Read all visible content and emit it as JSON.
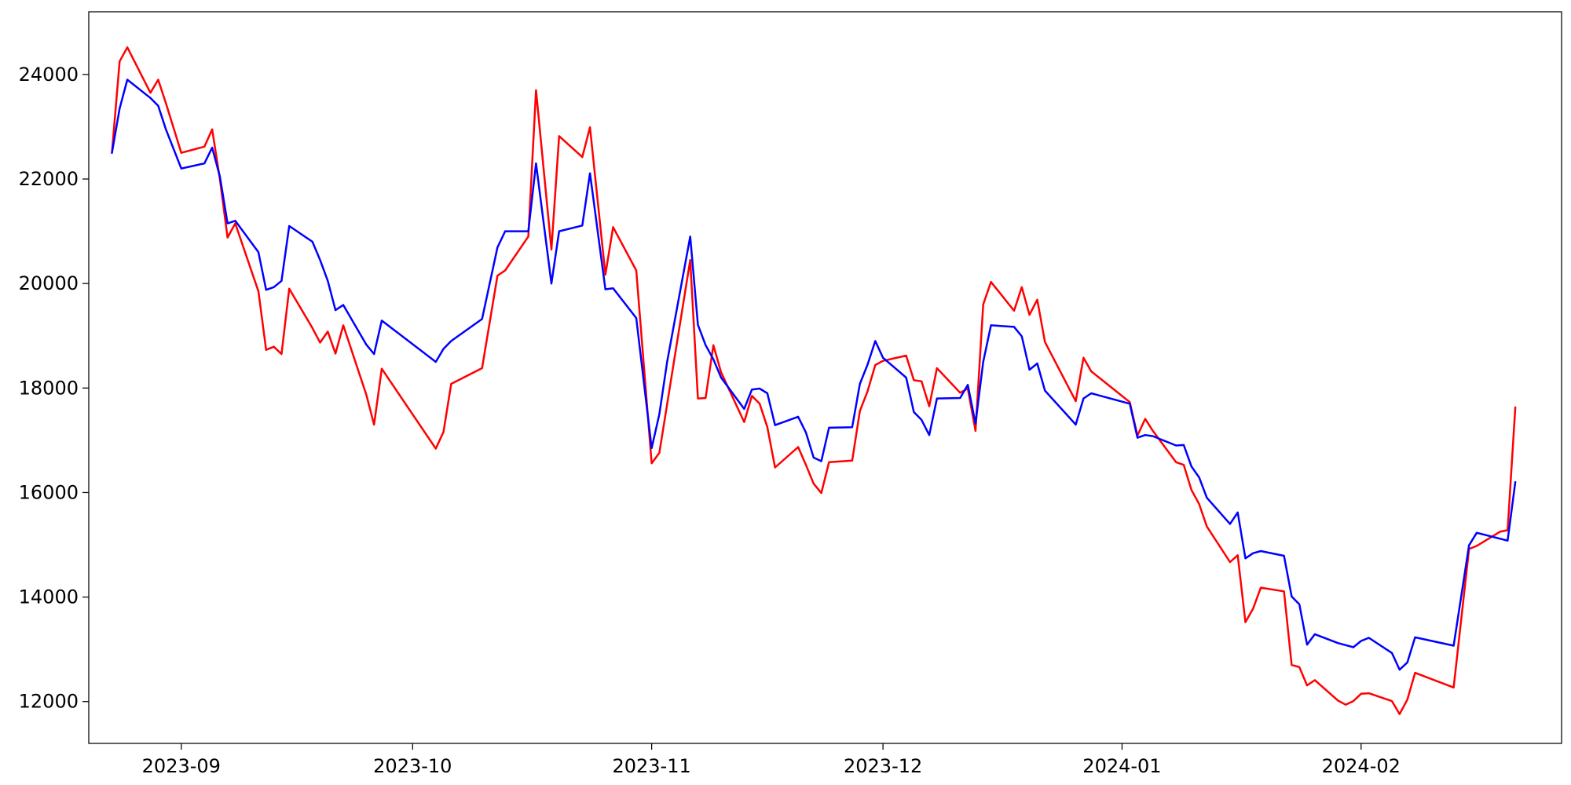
{
  "chart_data": {
    "type": "line",
    "title": "",
    "xlabel": "",
    "ylabel": "",
    "xlim": [
      "2023-08-20",
      "2024-02-27"
    ],
    "ylim": [
      11200,
      25200
    ],
    "grid": false,
    "legend": "none",
    "x_ticks": [
      "2023-09-01",
      "2023-10-01",
      "2023-11-01",
      "2023-12-01",
      "2024-01-01",
      "2024-02-01"
    ],
    "x_tick_labels": [
      "2023-09",
      "2023-10",
      "2023-11",
      "2023-12",
      "2024-01",
      "2024-02"
    ],
    "y_ticks": [
      12000,
      14000,
      16000,
      18000,
      20000,
      22000,
      24000
    ],
    "y_tick_labels": [
      "12000",
      "14000",
      "16000",
      "18000",
      "20000",
      "22000",
      "24000"
    ],
    "series": [
      {
        "color": "#ff0000",
        "points": [
          [
            "2023-08-23",
            22500
          ],
          [
            "2023-08-24",
            24250
          ],
          [
            "2023-08-25",
            24520
          ],
          [
            "2023-08-28",
            23650
          ],
          [
            "2023-08-29",
            23900
          ],
          [
            "2023-08-30",
            23450
          ],
          [
            "2023-09-01",
            22500
          ],
          [
            "2023-09-04",
            22620
          ],
          [
            "2023-09-05",
            22950
          ],
          [
            "2023-09-06",
            22000
          ],
          [
            "2023-09-07",
            20880
          ],
          [
            "2023-09-08",
            21150
          ],
          [
            "2023-09-11",
            19850
          ],
          [
            "2023-09-12",
            18730
          ],
          [
            "2023-09-13",
            18790
          ],
          [
            "2023-09-14",
            18650
          ],
          [
            "2023-09-15",
            19900
          ],
          [
            "2023-09-18",
            19150
          ],
          [
            "2023-09-19",
            18870
          ],
          [
            "2023-09-20",
            19080
          ],
          [
            "2023-09-21",
            18660
          ],
          [
            "2023-09-22",
            19200
          ],
          [
            "2023-09-25",
            17870
          ],
          [
            "2023-09-26",
            17300
          ],
          [
            "2023-09-27",
            18370
          ],
          [
            "2023-10-04",
            16840
          ],
          [
            "2023-10-05",
            17160
          ],
          [
            "2023-10-06",
            18080
          ],
          [
            "2023-10-10",
            18380
          ],
          [
            "2023-10-12",
            20150
          ],
          [
            "2023-10-13",
            20250
          ],
          [
            "2023-10-16",
            20900
          ],
          [
            "2023-10-17",
            23700
          ],
          [
            "2023-10-19",
            20650
          ],
          [
            "2023-10-20",
            22820
          ],
          [
            "2023-10-23",
            22420
          ],
          [
            "2023-10-24",
            22990
          ],
          [
            "2023-10-26",
            20170
          ],
          [
            "2023-10-27",
            21080
          ],
          [
            "2023-10-30",
            20250
          ],
          [
            "2023-11-01",
            16560
          ],
          [
            "2023-11-02",
            16760
          ],
          [
            "2023-11-06",
            20450
          ],
          [
            "2023-11-07",
            17800
          ],
          [
            "2023-11-08",
            17810
          ],
          [
            "2023-11-09",
            18820
          ],
          [
            "2023-11-10",
            18300
          ],
          [
            "2023-11-13",
            17350
          ],
          [
            "2023-11-14",
            17850
          ],
          [
            "2023-11-15",
            17700
          ],
          [
            "2023-11-16",
            17250
          ],
          [
            "2023-11-17",
            16480
          ],
          [
            "2023-11-20",
            16870
          ],
          [
            "2023-11-21",
            16530
          ],
          [
            "2023-11-22",
            16170
          ],
          [
            "2023-11-23",
            15990
          ],
          [
            "2023-11-24",
            16580
          ],
          [
            "2023-11-27",
            16610
          ],
          [
            "2023-11-28",
            17560
          ],
          [
            "2023-11-29",
            17940
          ],
          [
            "2023-11-30",
            18440
          ],
          [
            "2023-12-01",
            18520
          ],
          [
            "2023-12-04",
            18620
          ],
          [
            "2023-12-05",
            18150
          ],
          [
            "2023-12-06",
            18130
          ],
          [
            "2023-12-07",
            17650
          ],
          [
            "2023-12-08",
            18380
          ],
          [
            "2023-12-11",
            17910
          ],
          [
            "2023-12-12",
            17990
          ],
          [
            "2023-12-13",
            17180
          ],
          [
            "2023-12-14",
            19600
          ],
          [
            "2023-12-15",
            20030
          ],
          [
            "2023-12-18",
            19480
          ],
          [
            "2023-12-19",
            19930
          ],
          [
            "2023-12-20",
            19400
          ],
          [
            "2023-12-21",
            19690
          ],
          [
            "2023-12-22",
            18880
          ],
          [
            "2023-12-26",
            17750
          ],
          [
            "2023-12-27",
            18580
          ],
          [
            "2023-12-28",
            18320
          ],
          [
            "2024-01-02",
            17730
          ],
          [
            "2024-01-03",
            17090
          ],
          [
            "2024-01-04",
            17410
          ],
          [
            "2024-01-05",
            17180
          ],
          [
            "2024-01-08",
            16580
          ],
          [
            "2024-01-09",
            16530
          ],
          [
            "2024-01-10",
            16050
          ],
          [
            "2024-01-11",
            15780
          ],
          [
            "2024-01-12",
            15350
          ],
          [
            "2024-01-15",
            14670
          ],
          [
            "2024-01-16",
            14800
          ],
          [
            "2024-01-17",
            13520
          ],
          [
            "2024-01-18",
            13780
          ],
          [
            "2024-01-19",
            14180
          ],
          [
            "2024-01-22",
            14110
          ],
          [
            "2024-01-23",
            12700
          ],
          [
            "2024-01-24",
            12660
          ],
          [
            "2024-01-25",
            12310
          ],
          [
            "2024-01-26",
            12410
          ],
          [
            "2024-01-29",
            12020
          ],
          [
            "2024-01-30",
            11940
          ],
          [
            "2024-01-31",
            12010
          ],
          [
            "2024-02-01",
            12150
          ],
          [
            "2024-02-02",
            12160
          ],
          [
            "2024-02-05",
            12010
          ],
          [
            "2024-02-06",
            11760
          ],
          [
            "2024-02-07",
            12040
          ],
          [
            "2024-02-08",
            12550
          ],
          [
            "2024-02-13",
            12270
          ],
          [
            "2024-02-15",
            14920
          ],
          [
            "2024-02-16",
            14980
          ],
          [
            "2024-02-19",
            15250
          ],
          [
            "2024-02-20",
            15280
          ],
          [
            "2024-02-21",
            17630
          ]
        ]
      },
      {
        "color": "#0000ff",
        "points": [
          [
            "2023-08-23",
            22500
          ],
          [
            "2023-08-24",
            23350
          ],
          [
            "2023-08-25",
            23900
          ],
          [
            "2023-08-28",
            23550
          ],
          [
            "2023-08-29",
            23400
          ],
          [
            "2023-08-30",
            22950
          ],
          [
            "2023-09-01",
            22200
          ],
          [
            "2023-09-04",
            22300
          ],
          [
            "2023-09-05",
            22600
          ],
          [
            "2023-09-06",
            22050
          ],
          [
            "2023-09-07",
            21150
          ],
          [
            "2023-09-08",
            21200
          ],
          [
            "2023-09-11",
            20600
          ],
          [
            "2023-09-12",
            19880
          ],
          [
            "2023-09-13",
            19930
          ],
          [
            "2023-09-14",
            20050
          ],
          [
            "2023-09-15",
            21100
          ],
          [
            "2023-09-18",
            20800
          ],
          [
            "2023-09-19",
            20450
          ],
          [
            "2023-09-20",
            20050
          ],
          [
            "2023-09-21",
            19490
          ],
          [
            "2023-09-22",
            19590
          ],
          [
            "2023-09-25",
            18830
          ],
          [
            "2023-09-26",
            18650
          ],
          [
            "2023-09-27",
            19290
          ],
          [
            "2023-10-04",
            18500
          ],
          [
            "2023-10-05",
            18750
          ],
          [
            "2023-10-06",
            18900
          ],
          [
            "2023-10-10",
            19320
          ],
          [
            "2023-10-12",
            20690
          ],
          [
            "2023-10-13",
            21000
          ],
          [
            "2023-10-16",
            21000
          ],
          [
            "2023-10-17",
            22300
          ],
          [
            "2023-10-19",
            20000
          ],
          [
            "2023-10-20",
            21000
          ],
          [
            "2023-10-23",
            21110
          ],
          [
            "2023-10-24",
            22110
          ],
          [
            "2023-10-26",
            19890
          ],
          [
            "2023-10-27",
            19910
          ],
          [
            "2023-10-30",
            19340
          ],
          [
            "2023-11-01",
            16850
          ],
          [
            "2023-11-02",
            17500
          ],
          [
            "2023-11-03",
            18500
          ],
          [
            "2023-11-06",
            20900
          ],
          [
            "2023-11-07",
            19210
          ],
          [
            "2023-11-08",
            18820
          ],
          [
            "2023-11-09",
            18550
          ],
          [
            "2023-11-10",
            18200
          ],
          [
            "2023-11-13",
            17600
          ],
          [
            "2023-11-14",
            17970
          ],
          [
            "2023-11-15",
            17990
          ],
          [
            "2023-11-16",
            17900
          ],
          [
            "2023-11-17",
            17290
          ],
          [
            "2023-11-20",
            17450
          ],
          [
            "2023-11-21",
            17150
          ],
          [
            "2023-11-22",
            16670
          ],
          [
            "2023-11-23",
            16600
          ],
          [
            "2023-11-24",
            17240
          ],
          [
            "2023-11-27",
            17250
          ],
          [
            "2023-11-28",
            18080
          ],
          [
            "2023-11-29",
            18450
          ],
          [
            "2023-11-30",
            18900
          ],
          [
            "2023-12-01",
            18580
          ],
          [
            "2023-12-04",
            18200
          ],
          [
            "2023-12-05",
            17540
          ],
          [
            "2023-12-06",
            17390
          ],
          [
            "2023-12-07",
            17100
          ],
          [
            "2023-12-08",
            17800
          ],
          [
            "2023-12-11",
            17810
          ],
          [
            "2023-12-12",
            18060
          ],
          [
            "2023-12-13",
            17320
          ],
          [
            "2023-12-14",
            18500
          ],
          [
            "2023-12-15",
            19200
          ],
          [
            "2023-12-18",
            19170
          ],
          [
            "2023-12-19",
            18990
          ],
          [
            "2023-12-20",
            18350
          ],
          [
            "2023-12-21",
            18470
          ],
          [
            "2023-12-22",
            17950
          ],
          [
            "2023-12-26",
            17300
          ],
          [
            "2023-12-27",
            17800
          ],
          [
            "2023-12-28",
            17900
          ],
          [
            "2024-01-02",
            17700
          ],
          [
            "2024-01-03",
            17050
          ],
          [
            "2024-01-04",
            17100
          ],
          [
            "2024-01-05",
            17080
          ],
          [
            "2024-01-08",
            16900
          ],
          [
            "2024-01-09",
            16910
          ],
          [
            "2024-01-10",
            16500
          ],
          [
            "2024-01-11",
            16290
          ],
          [
            "2024-01-12",
            15900
          ],
          [
            "2024-01-15",
            15400
          ],
          [
            "2024-01-16",
            15620
          ],
          [
            "2024-01-17",
            14740
          ],
          [
            "2024-01-18",
            14840
          ],
          [
            "2024-01-19",
            14880
          ],
          [
            "2024-01-22",
            14790
          ],
          [
            "2024-01-23",
            14010
          ],
          [
            "2024-01-24",
            13860
          ],
          [
            "2024-01-25",
            13090
          ],
          [
            "2024-01-26",
            13290
          ],
          [
            "2024-01-29",
            13120
          ],
          [
            "2024-01-30",
            13080
          ],
          [
            "2024-01-31",
            13040
          ],
          [
            "2024-02-01",
            13160
          ],
          [
            "2024-02-02",
            13220
          ],
          [
            "2024-02-05",
            12930
          ],
          [
            "2024-02-06",
            12610
          ],
          [
            "2024-02-07",
            12750
          ],
          [
            "2024-02-08",
            13230
          ],
          [
            "2024-02-13",
            13070
          ],
          [
            "2024-02-15",
            14990
          ],
          [
            "2024-02-16",
            15230
          ],
          [
            "2024-02-20",
            15080
          ],
          [
            "2024-02-21",
            16200
          ]
        ]
      }
    ]
  }
}
